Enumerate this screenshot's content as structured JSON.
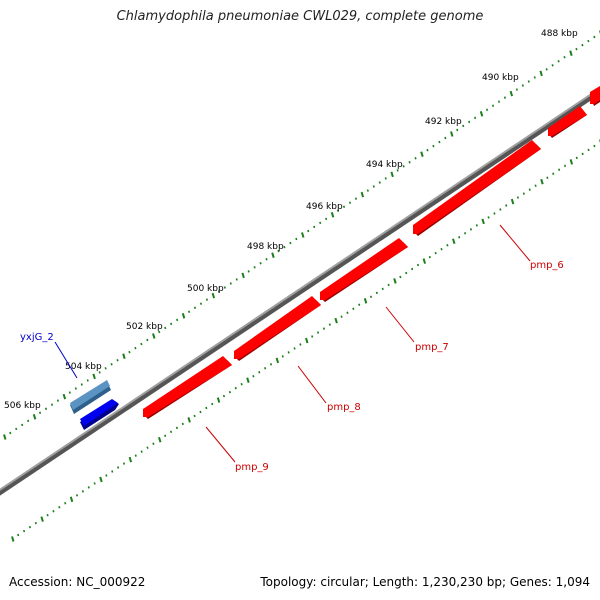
{
  "title": "Chlamydophila pneumoniae CWL029, complete genome",
  "footer": {
    "accession": "Accession: NC_000922",
    "summary": "Topology: circular; Length: 1,230,230 bp; Genes: 1,094"
  },
  "ticks": [
    "488 kbp",
    "490 kbp",
    "492 kbp",
    "494 kbp",
    "496 kbp",
    "498 kbp",
    "500 kbp",
    "502 kbp",
    "504 kbp",
    "506 kbp"
  ],
  "genes": [
    {
      "name": "pmp_6",
      "color": "#cc0000"
    },
    {
      "name": "pmp_7",
      "color": "#cc0000"
    },
    {
      "name": "pmp_8",
      "color": "#cc0000"
    },
    {
      "name": "pmp_9",
      "color": "#cc0000"
    },
    {
      "name": "yxjG_2",
      "color": "#0000cc"
    }
  ],
  "colors": {
    "backbone": "#808080",
    "forward_feature": "#ff0000",
    "reverse_cds": "#4a7fae",
    "reverse_gene": "#0000ee",
    "tick": "#1a7f1a"
  }
}
